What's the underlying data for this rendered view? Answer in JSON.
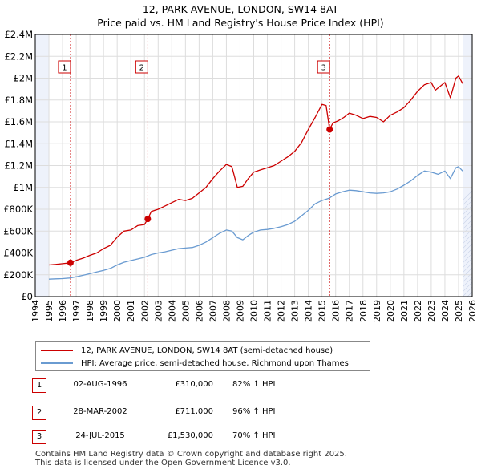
{
  "title_line1": "12, PARK AVENUE, LONDON, SW14 8AT",
  "title_line2": "Price paid vs. HM Land Registry's House Price Index (HPI)",
  "colors": {
    "property": "#cc0000",
    "hpi": "#6a9bd1",
    "shade": "#eef2fb",
    "grid": "#dddddd",
    "marker": "#cc0000"
  },
  "chart_data": {
    "type": "line",
    "title": "Price paid vs. HM Land Registry's House Price Index (HPI)",
    "xlabel": "",
    "ylabel": "",
    "xlim": [
      1994,
      2026
    ],
    "ylim": [
      0,
      2400000
    ],
    "x_ticks": [
      1994,
      1995,
      1996,
      1997,
      1998,
      1999,
      2000,
      2001,
      2002,
      2003,
      2004,
      2005,
      2006,
      2007,
      2008,
      2009,
      2010,
      2011,
      2012,
      2013,
      2014,
      2015,
      2016,
      2017,
      2018,
      2019,
      2020,
      2021,
      2022,
      2023,
      2024,
      2025,
      2026
    ],
    "y_ticks": [
      0,
      200000,
      400000,
      600000,
      800000,
      1000000,
      1200000,
      1400000,
      1600000,
      1800000,
      2000000,
      2200000,
      2400000
    ],
    "y_tick_labels": [
      "£0",
      "£200K",
      "£400K",
      "£600K",
      "£800K",
      "£1M",
      "£1.2M",
      "£1.4M",
      "£1.6M",
      "£1.8M",
      "£2M",
      "£2.2M",
      "£2.4M"
    ],
    "data_range": [
      1995.0,
      2025.3
    ],
    "series": [
      {
        "name": "12, PARK AVENUE, LONDON, SW14 8AT (semi-detached house)",
        "color": "#cc0000",
        "x": [
          1995.0,
          1995.5,
          1996.0,
          1996.58,
          1997.0,
          1997.5,
          1998.0,
          1998.5,
          1999.0,
          1999.5,
          2000.0,
          2000.5,
          2001.0,
          2001.5,
          2002.0,
          2002.24,
          2002.5,
          2003.0,
          2003.5,
          2004.0,
          2004.5,
          2005.0,
          2005.5,
          2006.0,
          2006.5,
          2007.0,
          2007.5,
          2008.0,
          2008.4,
          2008.8,
          2009.2,
          2009.6,
          2010.0,
          2010.5,
          2011.0,
          2011.5,
          2012.0,
          2012.5,
          2013.0,
          2013.5,
          2014.0,
          2014.5,
          2015.0,
          2015.3,
          2015.56,
          2015.8,
          2016.2,
          2016.6,
          2017.0,
          2017.5,
          2018.0,
          2018.5,
          2019.0,
          2019.5,
          2020.0,
          2020.5,
          2021.0,
          2021.5,
          2022.0,
          2022.5,
          2023.0,
          2023.3,
          2023.6,
          2024.0,
          2024.4,
          2024.8,
          2025.0,
          2025.3
        ],
        "y": [
          290000,
          295000,
          302000,
          310000,
          332000,
          352000,
          378000,
          400000,
          440000,
          470000,
          545000,
          600000,
          610000,
          650000,
          660000,
          711000,
          780000,
          800000,
          830000,
          860000,
          890000,
          880000,
          900000,
          950000,
          1000000,
          1080000,
          1150000,
          1210000,
          1190000,
          1000000,
          1010000,
          1080000,
          1140000,
          1160000,
          1180000,
          1200000,
          1240000,
          1280000,
          1330000,
          1410000,
          1530000,
          1640000,
          1760000,
          1750000,
          1530000,
          1590000,
          1610000,
          1640000,
          1680000,
          1660000,
          1630000,
          1650000,
          1640000,
          1600000,
          1660000,
          1690000,
          1730000,
          1800000,
          1880000,
          1940000,
          1960000,
          1890000,
          1920000,
          1960000,
          1820000,
          2000000,
          2020000,
          1950000
        ]
      },
      {
        "name": "HPI: Average price, semi-detached house, Richmond upon Thames",
        "color": "#6a9bd1",
        "x": [
          1995.0,
          1995.5,
          1996.0,
          1996.5,
          1997.0,
          1997.5,
          1998.0,
          1998.5,
          1999.0,
          1999.5,
          2000.0,
          2000.5,
          2001.0,
          2001.5,
          2002.0,
          2002.5,
          2003.0,
          2003.5,
          2004.0,
          2004.5,
          2005.0,
          2005.5,
          2006.0,
          2006.5,
          2007.0,
          2007.5,
          2008.0,
          2008.4,
          2008.8,
          2009.2,
          2009.6,
          2010.0,
          2010.5,
          2011.0,
          2011.5,
          2012.0,
          2012.5,
          2013.0,
          2013.5,
          2014.0,
          2014.5,
          2015.0,
          2015.5,
          2016.0,
          2016.5,
          2017.0,
          2017.5,
          2018.0,
          2018.5,
          2019.0,
          2019.5,
          2020.0,
          2020.5,
          2021.0,
          2021.5,
          2022.0,
          2022.5,
          2023.0,
          2023.5,
          2024.0,
          2024.4,
          2024.8,
          2025.0,
          2025.3
        ],
        "y": [
          160000,
          163000,
          165000,
          170000,
          182000,
          195000,
          210000,
          225000,
          240000,
          258000,
          290000,
          315000,
          330000,
          345000,
          360000,
          385000,
          400000,
          410000,
          425000,
          440000,
          445000,
          450000,
          470000,
          500000,
          540000,
          580000,
          610000,
          600000,
          540000,
          520000,
          560000,
          590000,
          610000,
          615000,
          625000,
          640000,
          660000,
          690000,
          740000,
          790000,
          850000,
          880000,
          900000,
          940000,
          960000,
          975000,
          970000,
          960000,
          950000,
          945000,
          950000,
          960000,
          985000,
          1020000,
          1060000,
          1110000,
          1150000,
          1140000,
          1120000,
          1150000,
          1080000,
          1180000,
          1190000,
          1150000
        ]
      }
    ],
    "annotations": [
      {
        "label": "1",
        "x": 1996.58,
        "y": 310000
      },
      {
        "label": "2",
        "x": 2002.24,
        "y": 711000
      },
      {
        "label": "3",
        "x": 2015.56,
        "y": 1530000
      }
    ]
  },
  "legend": {
    "property": "12, PARK AVENUE, LONDON, SW14 8AT (semi-detached house)",
    "hpi": "HPI: Average price, semi-detached house, Richmond upon Thames"
  },
  "transactions": [
    {
      "num": "1",
      "date": "02-AUG-1996",
      "price": "£310,000",
      "hpi": "82% ↑ HPI"
    },
    {
      "num": "2",
      "date": "28-MAR-2002",
      "price": "£711,000",
      "hpi": "96% ↑ HPI"
    },
    {
      "num": "3",
      "date": "24-JUL-2015",
      "price": "£1,530,000",
      "hpi": "70% ↑ HPI"
    }
  ],
  "footer_line1": "Contains HM Land Registry data © Crown copyright and database right 2025.",
  "footer_line2": "This data is licensed under the Open Government Licence v3.0."
}
